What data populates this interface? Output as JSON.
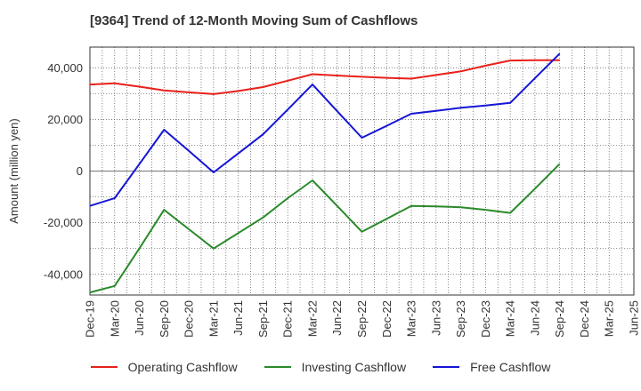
{
  "title": "[9364]  Trend of 12-Month Moving Sum of Cashflows",
  "chart_data": {
    "type": "line",
    "title": "[9364]  Trend of 12-Month Moving Sum of Cashflows",
    "xlabel": "",
    "ylabel": "Amount (million yen)",
    "ylim": [
      -48000,
      48000
    ],
    "yticks": [
      -40000,
      -20000,
      0,
      20000,
      40000
    ],
    "ytick_labels": [
      "-40,000",
      "-20,000",
      "0",
      "20,000",
      "40,000"
    ],
    "grid": true,
    "legend_position": "bottom",
    "categories": [
      "Dec-19",
      "Mar-20",
      "Jun-20",
      "Sep-20",
      "Dec-20",
      "Mar-21",
      "Jun-21",
      "Sep-21",
      "Dec-21",
      "Mar-22",
      "Jun-22",
      "Sep-22",
      "Dec-22",
      "Mar-23",
      "Jun-23",
      "Sep-23",
      "Dec-23",
      "Mar-24",
      "Jun-24",
      "Sep-24",
      "Dec-24",
      "Mar-25"
    ],
    "extra_tick_labels": [
      "Jun-25"
    ],
    "series": [
      {
        "name": "Operating Cashflow",
        "color": "#e8201a",
        "values": [
          33500,
          34000,
          32700,
          31200,
          30500,
          29800,
          31000,
          32500,
          35000,
          37500,
          37000,
          36500,
          36100,
          35800,
          37200,
          38600,
          40800,
          42800,
          42900,
          42900,
          null,
          null
        ]
      },
      {
        "name": "Investing Cashflow",
        "color": "#2a8a2a",
        "values": [
          -47000,
          -44500,
          -30000,
          -15000,
          -22500,
          -30000,
          -24000,
          -18000,
          -10500,
          -3600,
          -13500,
          -23500,
          -18500,
          -13500,
          -13700,
          -14000,
          -15000,
          -16200,
          -6800,
          2800,
          null,
          null
        ]
      },
      {
        "name": "Free Cashflow",
        "color": "#1515d6",
        "values": [
          -13500,
          -10500,
          2700,
          16000,
          7800,
          -500,
          6800,
          14200,
          23800,
          33500,
          23200,
          12900,
          17500,
          22200,
          23300,
          24500,
          25400,
          26400,
          36000,
          45500,
          null,
          null
        ]
      }
    ]
  }
}
